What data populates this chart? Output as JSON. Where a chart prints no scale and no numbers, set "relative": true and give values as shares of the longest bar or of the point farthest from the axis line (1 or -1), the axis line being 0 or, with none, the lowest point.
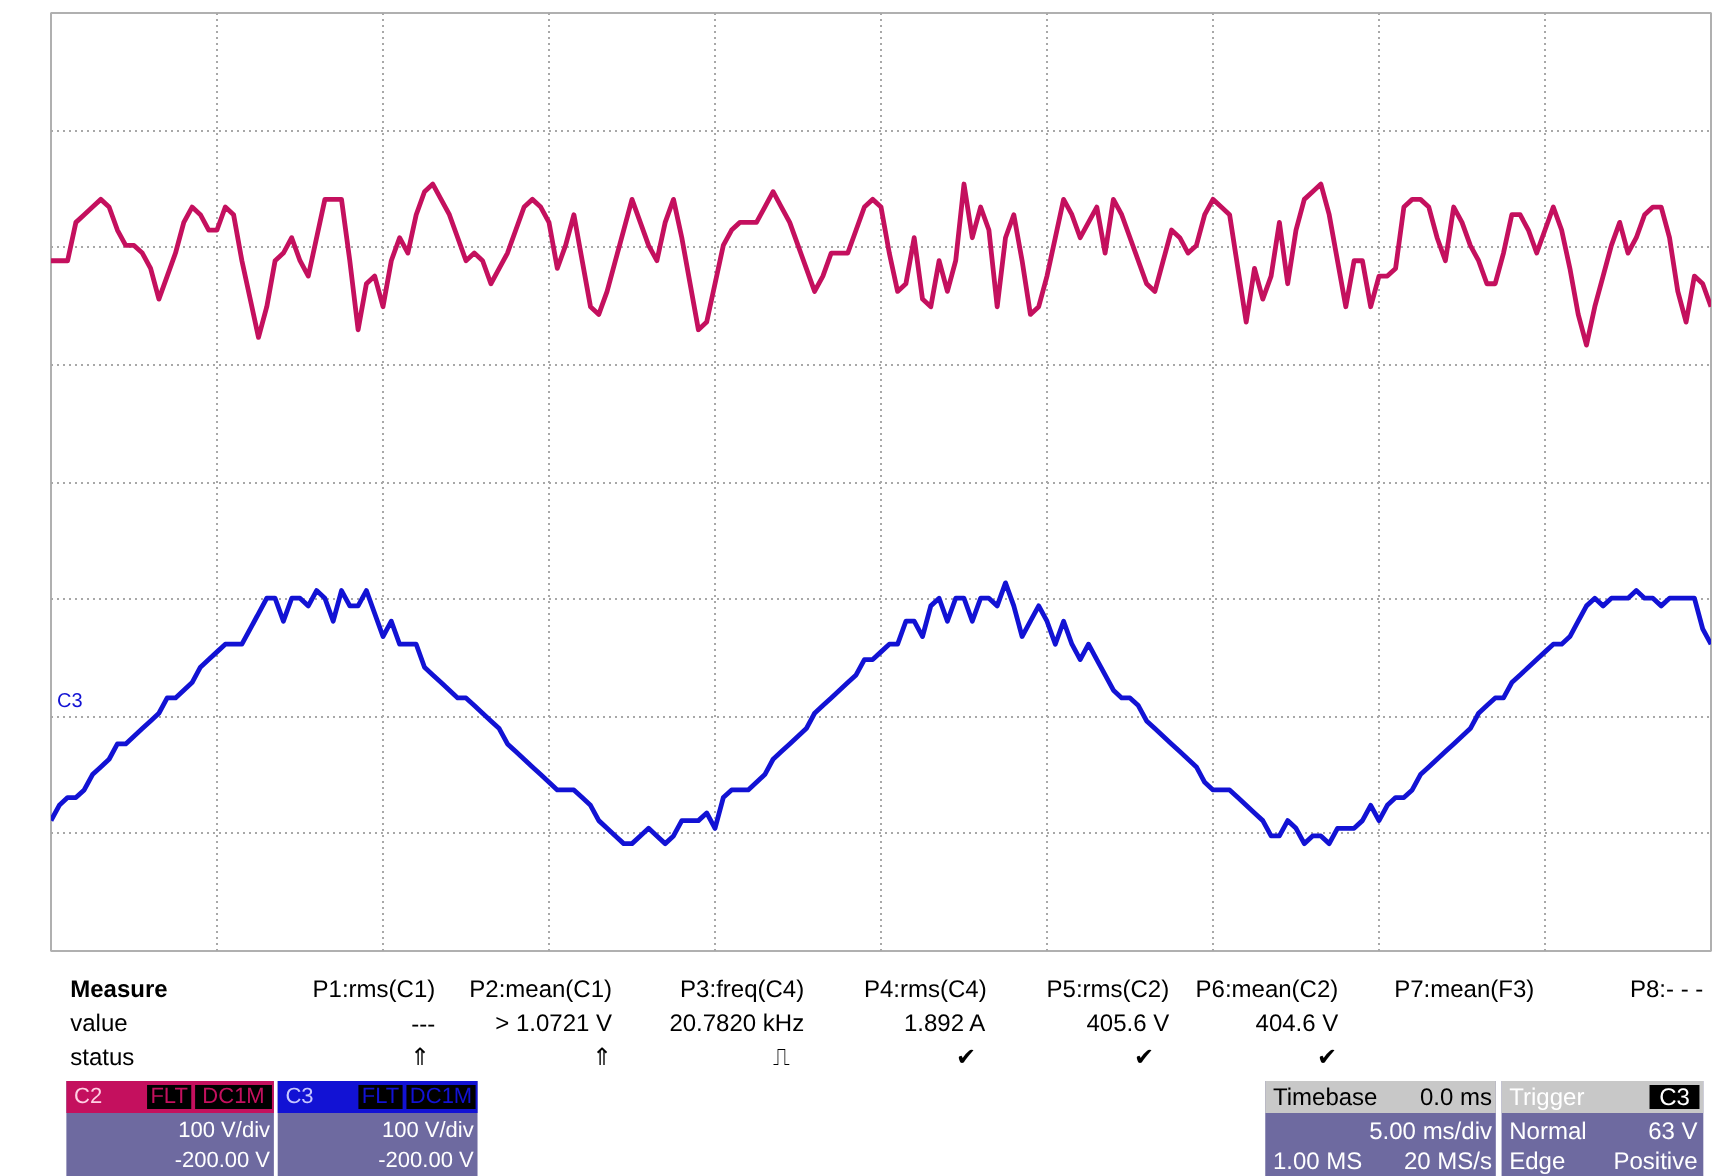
{
  "chart_data": {
    "type": "line",
    "relative": true,
    "categories": [
      null,
      null,
      null,
      null,
      null,
      null,
      null,
      null,
      null,
      null,
      null,
      null,
      null,
      null,
      null,
      null,
      null,
      null,
      null,
      null,
      null,
      null,
      null,
      null,
      null,
      null,
      null,
      null,
      null,
      null,
      null,
      null,
      null,
      null,
      null,
      null,
      null,
      null,
      null,
      null,
      null,
      null,
      null,
      null,
      null,
      null,
      null,
      null,
      null,
      null,
      null,
      null,
      null,
      null,
      null,
      null,
      null,
      null,
      null,
      null,
      null,
      null,
      null,
      null,
      null,
      null,
      null,
      null,
      null,
      null,
      null,
      null,
      null,
      null,
      null,
      null,
      null,
      null,
      null,
      null,
      null,
      null,
      null,
      null,
      null,
      null,
      null,
      null,
      null,
      null,
      null,
      null,
      null,
      null,
      null,
      null,
      null,
      null,
      null,
      null,
      null,
      null,
      null,
      null,
      null,
      null,
      null,
      null,
      null,
      null,
      null,
      null,
      null,
      null,
      null,
      null,
      null,
      null,
      null,
      null,
      null,
      null,
      null,
      null,
      null,
      null,
      null,
      null,
      null,
      null,
      null,
      null,
      null,
      null,
      null,
      null,
      null,
      null,
      null,
      null,
      null,
      null,
      null,
      null,
      null,
      null,
      null,
      null,
      null,
      null,
      null,
      null,
      null,
      null,
      null,
      null,
      null,
      null,
      null,
      null,
      null,
      null,
      null,
      null,
      null,
      null,
      null,
      null,
      null,
      null,
      null,
      null,
      null,
      null,
      null,
      null,
      null,
      null,
      null,
      null,
      null,
      null,
      null,
      null,
      null,
      null,
      null,
      null,
      null,
      null,
      null,
      null,
      null,
      null,
      null,
      null,
      null,
      null,
      null,
      null,
      null
    ],
    "tick_labels": false,
    "grid": true,
    "line_style": "solid",
    "series": [
      {
        "color": "#c4105e",
        "values": [
          0.9,
          0.9,
          0.9,
          0.95,
          0.96,
          0.97,
          0.98,
          0.97,
          0.94,
          0.92,
          0.92,
          0.91,
          0.89,
          0.85,
          0.88,
          0.91,
          0.95,
          0.97,
          0.96,
          0.94,
          0.94,
          0.97,
          0.96,
          0.9,
          0.85,
          0.8,
          0.84,
          0.9,
          0.91,
          0.93,
          0.9,
          0.88,
          0.93,
          0.98,
          0.98,
          0.98,
          0.9,
          0.81,
          0.87,
          0.88,
          0.84,
          0.9,
          0.93,
          0.91,
          0.96,
          0.99,
          1.0,
          0.98,
          0.96,
          0.93,
          0.9,
          0.91,
          0.9,
          0.87,
          0.89,
          0.91,
          0.94,
          0.97,
          0.98,
          0.97,
          0.95,
          0.89,
          0.92,
          0.96,
          0.9,
          0.84,
          0.83,
          0.86,
          0.9,
          0.94,
          0.98,
          0.95,
          0.92,
          0.9,
          0.95,
          0.98,
          0.93,
          0.87,
          0.81,
          0.82,
          0.87,
          0.92,
          0.94,
          0.95,
          0.95,
          0.95,
          0.97,
          0.99,
          0.97,
          0.95,
          0.92,
          0.89,
          0.86,
          0.88,
          0.91,
          0.91,
          0.91,
          0.94,
          0.97,
          0.98,
          0.97,
          0.91,
          0.86,
          0.87,
          0.93,
          0.85,
          0.84,
          0.9,
          0.86,
          0.9,
          1.0,
          0.93,
          0.97,
          0.94,
          0.84,
          0.93,
          0.96,
          0.9,
          0.83,
          0.84,
          0.88,
          0.93,
          0.98,
          0.96,
          0.93,
          0.95,
          0.97,
          0.91,
          0.98,
          0.96,
          0.93,
          0.9,
          0.87,
          0.86,
          0.9,
          0.94,
          0.93,
          0.91,
          0.92,
          0.96,
          0.98,
          0.97,
          0.96,
          0.89,
          0.82,
          0.89,
          0.85,
          0.88,
          0.95,
          0.87,
          0.94,
          0.98,
          0.99,
          1.0,
          0.96,
          0.9,
          0.84,
          0.9,
          0.9,
          0.84,
          0.88,
          0.88,
          0.89,
          0.97,
          0.98,
          0.98,
          0.97,
          0.93,
          0.9,
          0.97,
          0.95,
          0.92,
          0.9,
          0.87,
          0.87,
          0.91,
          0.96,
          0.96,
          0.94,
          0.91,
          0.94,
          0.97,
          0.94,
          0.89,
          0.83,
          0.79,
          0.84,
          0.88,
          0.92,
          0.95,
          0.91,
          0.93,
          0.96,
          0.97,
          0.97,
          0.93,
          0.86,
          0.82,
          0.88,
          0.87,
          0.84
        ]
      },
      {
        "color": "#1212d4",
        "values": [
          0.17,
          0.19,
          0.2,
          0.2,
          0.21,
          0.23,
          0.24,
          0.25,
          0.27,
          0.27,
          0.28,
          0.29,
          0.3,
          0.31,
          0.33,
          0.33,
          0.34,
          0.35,
          0.37,
          0.38,
          0.39,
          0.4,
          0.4,
          0.4,
          0.42,
          0.44,
          0.46,
          0.46,
          0.43,
          0.46,
          0.46,
          0.45,
          0.47,
          0.46,
          0.43,
          0.47,
          0.45,
          0.45,
          0.47,
          0.44,
          0.41,
          0.43,
          0.4,
          0.4,
          0.4,
          0.37,
          0.36,
          0.35,
          0.34,
          0.33,
          0.33,
          0.32,
          0.31,
          0.3,
          0.29,
          0.27,
          0.26,
          0.25,
          0.24,
          0.23,
          0.22,
          0.21,
          0.21,
          0.21,
          0.2,
          0.19,
          0.17,
          0.16,
          0.15,
          0.14,
          0.14,
          0.15,
          0.16,
          0.15,
          0.14,
          0.15,
          0.17,
          0.17,
          0.17,
          0.18,
          0.16,
          0.2,
          0.21,
          0.21,
          0.21,
          0.22,
          0.23,
          0.25,
          0.26,
          0.27,
          0.28,
          0.29,
          0.31,
          0.32,
          0.33,
          0.34,
          0.35,
          0.36,
          0.38,
          0.38,
          0.39,
          0.4,
          0.4,
          0.43,
          0.43,
          0.41,
          0.45,
          0.46,
          0.43,
          0.46,
          0.46,
          0.43,
          0.46,
          0.46,
          0.45,
          0.48,
          0.45,
          0.41,
          0.43,
          0.45,
          0.43,
          0.4,
          0.43,
          0.4,
          0.38,
          0.4,
          0.38,
          0.36,
          0.34,
          0.33,
          0.33,
          0.32,
          0.3,
          0.29,
          0.28,
          0.27,
          0.26,
          0.25,
          0.24,
          0.22,
          0.21,
          0.21,
          0.21,
          0.2,
          0.19,
          0.18,
          0.17,
          0.15,
          0.15,
          0.17,
          0.16,
          0.14,
          0.15,
          0.15,
          0.14,
          0.16,
          0.16,
          0.16,
          0.17,
          0.19,
          0.17,
          0.19,
          0.2,
          0.2,
          0.21,
          0.23,
          0.24,
          0.25,
          0.26,
          0.27,
          0.28,
          0.29,
          0.31,
          0.32,
          0.33,
          0.33,
          0.35,
          0.36,
          0.37,
          0.38,
          0.39,
          0.4,
          0.4,
          0.41,
          0.43,
          0.45,
          0.46,
          0.45,
          0.46,
          0.46,
          0.46,
          0.47,
          0.46,
          0.46,
          0.45,
          0.46,
          0.46,
          0.46,
          0.46,
          0.42,
          0.4
        ]
      }
    ],
    "annotations": [
      "Measure",
      "value",
      "status",
      "P1:rms(C1)",
      "---",
      "P2:mean(C1)",
      "> 1.0721 V",
      "P3:freq(C4)",
      "20.7820 kHz",
      "P4:rms(C4)",
      "1.892 A",
      "P5:rms(C2)",
      "405.6 V",
      "P6:mean(C2)",
      "404.6 V",
      "P7:mean(F3)",
      "P8:- - -",
      "⇑",
      "⇑",
      "⎍",
      "✔",
      "✔",
      "✔",
      "C2",
      "FLT",
      "DC1M",
      "100 V/div",
      "-200.00 V",
      "C3",
      "FLT",
      "DC1M",
      "100 V/div",
      "-200.00 V",
      "Timebase",
      "0.0 ms",
      "5.00 ms/div",
      "1.00 MS",
      "20 MS/s",
      "Trigger",
      "C3",
      "Normal",
      "63 V",
      "Edge",
      "Positive",
      "C3"
    ]
  }
}
